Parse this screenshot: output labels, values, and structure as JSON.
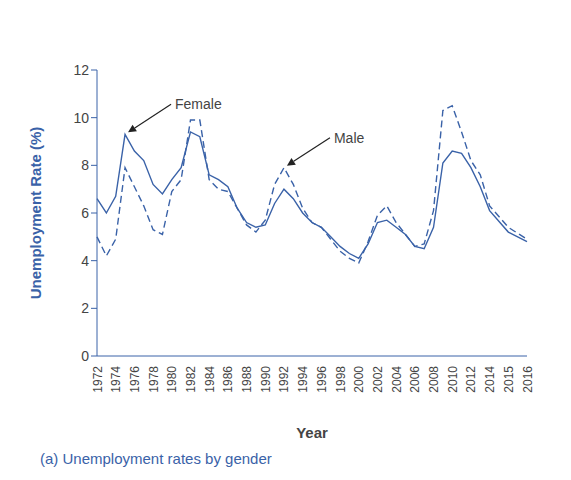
{
  "chart_data": {
    "type": "line",
    "title": "(a) Unemployment rates by gender",
    "x_label": "Year",
    "y_label": "Unemployment Rate (%)",
    "categories": [
      "1972",
      null,
      "1974",
      null,
      "1976",
      null,
      "1978",
      null,
      "1980",
      null,
      "1982",
      null,
      "1984",
      null,
      "1986",
      null,
      "1988",
      null,
      "1990",
      null,
      "1992",
      null,
      "1994",
      null,
      "1996",
      null,
      "1998",
      null,
      "2000",
      null,
      "2002",
      null,
      "2004",
      null,
      "2006",
      null,
      "2008",
      null,
      "2010",
      null,
      "2012",
      null,
      "2014",
      null,
      "2015",
      null,
      "2016"
    ],
    "series": [
      {
        "name": "Female",
        "color": "#3a62a8",
        "line_style": "solid",
        "values": [
          6.6,
          6.0,
          6.7,
          9.3,
          8.6,
          8.2,
          7.2,
          6.8,
          7.4,
          7.9,
          9.4,
          9.2,
          7.6,
          7.4,
          7.1,
          6.2,
          5.6,
          5.4,
          5.5,
          6.4,
          7.0,
          6.6,
          6.0,
          5.6,
          5.4,
          5.0,
          4.6,
          4.3,
          4.1,
          4.7,
          5.6,
          5.7,
          5.4,
          5.1,
          4.6,
          4.5,
          5.4,
          8.1,
          8.6,
          8.5,
          7.9,
          7.1,
          6.1,
          null,
          5.2,
          null,
          4.8
        ]
      },
      {
        "name": "Male",
        "color": "#3a62a8",
        "line_style": "dashed",
        "values": [
          5.0,
          4.2,
          4.9,
          7.9,
          7.1,
          6.3,
          5.3,
          5.1,
          6.9,
          7.4,
          9.9,
          9.9,
          7.4,
          7.0,
          6.9,
          6.2,
          5.5,
          5.2,
          5.7,
          7.2,
          7.9,
          7.2,
          6.2,
          5.6,
          5.4,
          4.9,
          4.4,
          4.1,
          3.9,
          4.8,
          5.9,
          6.3,
          5.6,
          5.1,
          4.6,
          4.7,
          6.1,
          10.3,
          10.5,
          9.4,
          8.2,
          7.6,
          6.3,
          null,
          5.4,
          null,
          4.9
        ]
      }
    ],
    "ylim": [
      0,
      12
    ],
    "yticks": [
      0,
      2,
      4,
      6,
      8,
      10,
      12
    ],
    "grid": false,
    "annotations": [
      {
        "text": "Female",
        "x": 1975,
        "y": 9.3
      },
      {
        "text": "Male",
        "x": 1992,
        "y": 7.9
      }
    ]
  }
}
